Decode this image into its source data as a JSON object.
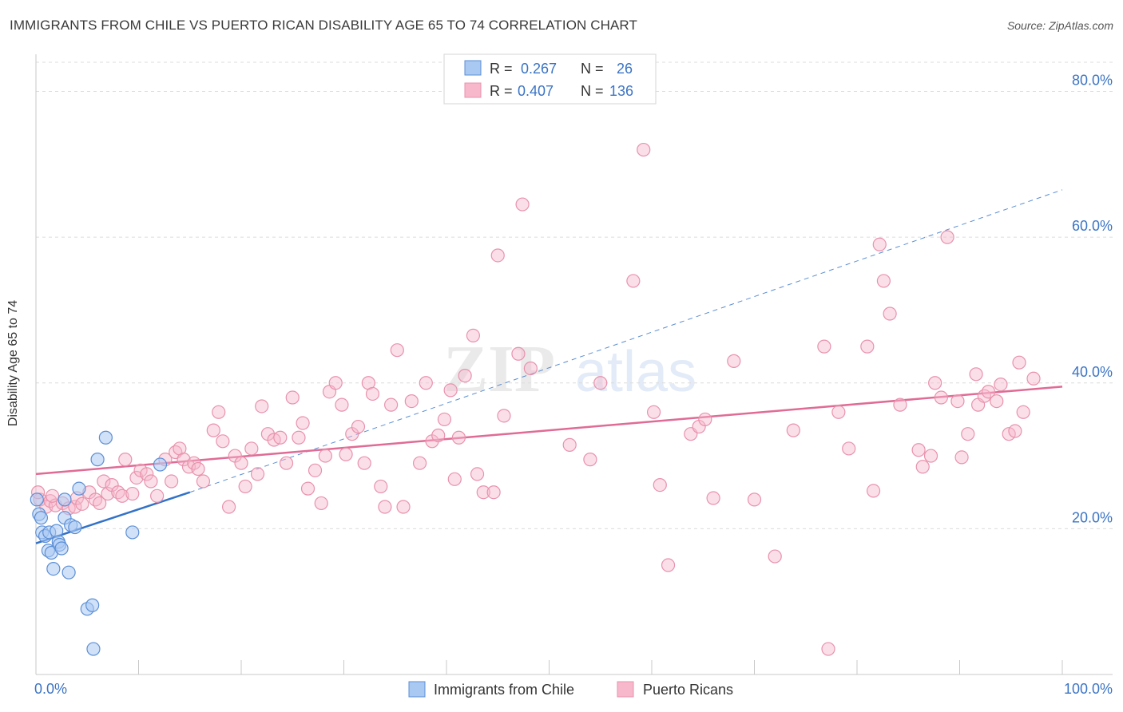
{
  "title": "IMMIGRANTS FROM CHILE VS PUERTO RICAN DISABILITY AGE 65 TO 74 CORRELATION CHART",
  "source": "Source: ZipAtlas.com",
  "watermark": {
    "zip": "ZIP",
    "atlas": "atlas"
  },
  "chart_data": {
    "type": "scatter",
    "ylabel": "Disability Age 65 to 74",
    "xlim": [
      0,
      100
    ],
    "ylim": [
      0,
      84
    ],
    "x_tick_labels": [
      "0.0%",
      "100.0%"
    ],
    "y_ticks": [
      20,
      40,
      60,
      80
    ],
    "y_tick_labels": [
      "20.0%",
      "40.0%",
      "60.0%",
      "80.0%"
    ],
    "grid": true,
    "legend_top": [
      {
        "r_label": "R =",
        "r_value": "0.267",
        "n_label": "N =",
        "n_value": "26"
      },
      {
        "r_label": "R =",
        "r_value": "0.407",
        "n_label": "N =",
        "n_value": "136"
      }
    ],
    "legend_bottom": [
      "Immigrants from Chile",
      "Puerto Ricans"
    ],
    "colors": {
      "chile_fill": "#a9c8f2",
      "chile_stroke": "#5b8fd6",
      "chile_line": "#3272c8",
      "pr_fill": "#f7b8cb",
      "pr_stroke": "#e892ad",
      "pr_line": "#e06b95",
      "tick_label": "#3b74c4"
    },
    "series": [
      {
        "name": "Immigrants from Chile",
        "trend": {
          "x": [
            0,
            15
          ],
          "y": [
            18.0,
            25.0
          ],
          "dashed_to_x": 100,
          "dashed_to_y": 66.5
        },
        "points": [
          [
            0.1,
            24.0
          ],
          [
            0.3,
            22.0
          ],
          [
            0.5,
            21.5
          ],
          [
            0.6,
            19.5
          ],
          [
            0.9,
            19.0
          ],
          [
            1.2,
            17.0
          ],
          [
            1.3,
            19.5
          ],
          [
            1.5,
            16.7
          ],
          [
            1.7,
            14.5
          ],
          [
            2.0,
            19.7
          ],
          [
            2.2,
            18.2
          ],
          [
            2.3,
            17.8
          ],
          [
            2.5,
            17.3
          ],
          [
            2.8,
            24.0
          ],
          [
            2.8,
            21.5
          ],
          [
            3.2,
            14.0
          ],
          [
            3.4,
            20.5
          ],
          [
            3.8,
            20.2
          ],
          [
            4.2,
            25.5
          ],
          [
            5.0,
            9.0
          ],
          [
            5.5,
            9.5
          ],
          [
            5.6,
            3.5
          ],
          [
            6.0,
            29.5
          ],
          [
            6.8,
            32.5
          ],
          [
            9.4,
            19.5
          ],
          [
            12.1,
            28.8
          ]
        ]
      },
      {
        "name": "Puerto Ricans",
        "trend": {
          "x": [
            0,
            100
          ],
          "y": [
            27.5,
            39.5
          ]
        },
        "points": [
          [
            0.4,
            24.0
          ],
          [
            1.0,
            23.0
          ],
          [
            1.4,
            23.8
          ],
          [
            1.9,
            23.2
          ],
          [
            2.6,
            23.5
          ],
          [
            3.2,
            22.8
          ],
          [
            3.8,
            23.0
          ],
          [
            4.0,
            24.2
          ],
          [
            4.5,
            23.4
          ],
          [
            5.2,
            25.0
          ],
          [
            5.8,
            24.0
          ],
          [
            6.2,
            23.5
          ],
          [
            6.6,
            26.5
          ],
          [
            7.0,
            24.8
          ],
          [
            7.4,
            26.0
          ],
          [
            8.0,
            25.0
          ],
          [
            8.4,
            24.5
          ],
          [
            8.7,
            29.5
          ],
          [
            9.4,
            24.8
          ],
          [
            9.8,
            27.0
          ],
          [
            10.2,
            28.0
          ],
          [
            10.8,
            27.5
          ],
          [
            11.2,
            26.5
          ],
          [
            11.8,
            24.5
          ],
          [
            12.6,
            29.5
          ],
          [
            13.2,
            26.5
          ],
          [
            13.6,
            30.5
          ],
          [
            14.0,
            31.0
          ],
          [
            14.4,
            29.5
          ],
          [
            14.9,
            28.5
          ],
          [
            15.4,
            29.0
          ],
          [
            15.8,
            28.2
          ],
          [
            16.3,
            26.5
          ],
          [
            17.3,
            33.5
          ],
          [
            17.8,
            36.0
          ],
          [
            18.2,
            32.0
          ],
          [
            18.8,
            23.0
          ],
          [
            19.4,
            30.0
          ],
          [
            20.0,
            29.0
          ],
          [
            20.4,
            25.8
          ],
          [
            21.0,
            31.0
          ],
          [
            21.6,
            27.5
          ],
          [
            22.0,
            36.8
          ],
          [
            22.6,
            33.0
          ],
          [
            23.2,
            32.2
          ],
          [
            23.8,
            32.5
          ],
          [
            24.4,
            29.0
          ],
          [
            25.0,
            38.0
          ],
          [
            25.6,
            32.5
          ],
          [
            26.0,
            34.5
          ],
          [
            26.5,
            25.5
          ],
          [
            27.2,
            28.0
          ],
          [
            27.8,
            23.5
          ],
          [
            28.2,
            30.0
          ],
          [
            28.6,
            38.8
          ],
          [
            29.2,
            40.0
          ],
          [
            29.8,
            37.0
          ],
          [
            30.2,
            30.2
          ],
          [
            30.8,
            33.0
          ],
          [
            31.4,
            34.0
          ],
          [
            32.0,
            29.0
          ],
          [
            32.4,
            40.0
          ],
          [
            32.8,
            38.5
          ],
          [
            33.6,
            25.8
          ],
          [
            34.0,
            23.0
          ],
          [
            34.6,
            37.0
          ],
          [
            35.2,
            44.5
          ],
          [
            35.8,
            23.0
          ],
          [
            36.6,
            37.5
          ],
          [
            37.4,
            29.0
          ],
          [
            38.0,
            40.0
          ],
          [
            38.6,
            32.0
          ],
          [
            39.2,
            32.8
          ],
          [
            39.8,
            35.0
          ],
          [
            40.4,
            39.0
          ],
          [
            40.8,
            26.8
          ],
          [
            41.2,
            32.5
          ],
          [
            41.8,
            41.0
          ],
          [
            42.6,
            46.5
          ],
          [
            43.0,
            27.5
          ],
          [
            43.6,
            25.0
          ],
          [
            44.6,
            25.0
          ],
          [
            45.0,
            57.5
          ],
          [
            45.6,
            35.5
          ],
          [
            47.0,
            44.0
          ],
          [
            47.4,
            64.5
          ],
          [
            48.2,
            42.0
          ],
          [
            52.0,
            31.5
          ],
          [
            54.0,
            29.5
          ],
          [
            55.0,
            40.0
          ],
          [
            58.2,
            54.0
          ],
          [
            59.2,
            72.0
          ],
          [
            60.2,
            36.0
          ],
          [
            60.8,
            26.0
          ],
          [
            61.6,
            15.0
          ],
          [
            63.8,
            33.0
          ],
          [
            64.6,
            34.0
          ],
          [
            65.2,
            35.0
          ],
          [
            66.0,
            24.2
          ],
          [
            68.0,
            43.0
          ],
          [
            70.0,
            24.0
          ],
          [
            72.0,
            16.2
          ],
          [
            73.8,
            33.5
          ],
          [
            76.8,
            45.0
          ],
          [
            77.2,
            3.5
          ],
          [
            78.2,
            36.0
          ],
          [
            79.2,
            31.0
          ],
          [
            81.0,
            45.0
          ],
          [
            81.6,
            25.2
          ],
          [
            82.2,
            59.0
          ],
          [
            82.6,
            54.0
          ],
          [
            83.2,
            49.5
          ],
          [
            84.2,
            37.0
          ],
          [
            86.0,
            30.8
          ],
          [
            86.4,
            28.5
          ],
          [
            87.2,
            30.0
          ],
          [
            87.6,
            40.0
          ],
          [
            88.2,
            38.0
          ],
          [
            88.8,
            60.0
          ],
          [
            89.8,
            37.5
          ],
          [
            90.2,
            29.8
          ],
          [
            90.8,
            33.0
          ],
          [
            91.6,
            41.2
          ],
          [
            91.8,
            37.0
          ],
          [
            92.4,
            38.2
          ],
          [
            92.8,
            38.8
          ],
          [
            93.6,
            37.5
          ],
          [
            94.0,
            39.8
          ],
          [
            94.8,
            33.0
          ],
          [
            95.4,
            33.4
          ],
          [
            95.8,
            42.8
          ],
          [
            96.2,
            36.0
          ],
          [
            97.2,
            40.6
          ],
          [
            0.2,
            25.0
          ],
          [
            1.6,
            24.5
          ]
        ]
      }
    ]
  }
}
